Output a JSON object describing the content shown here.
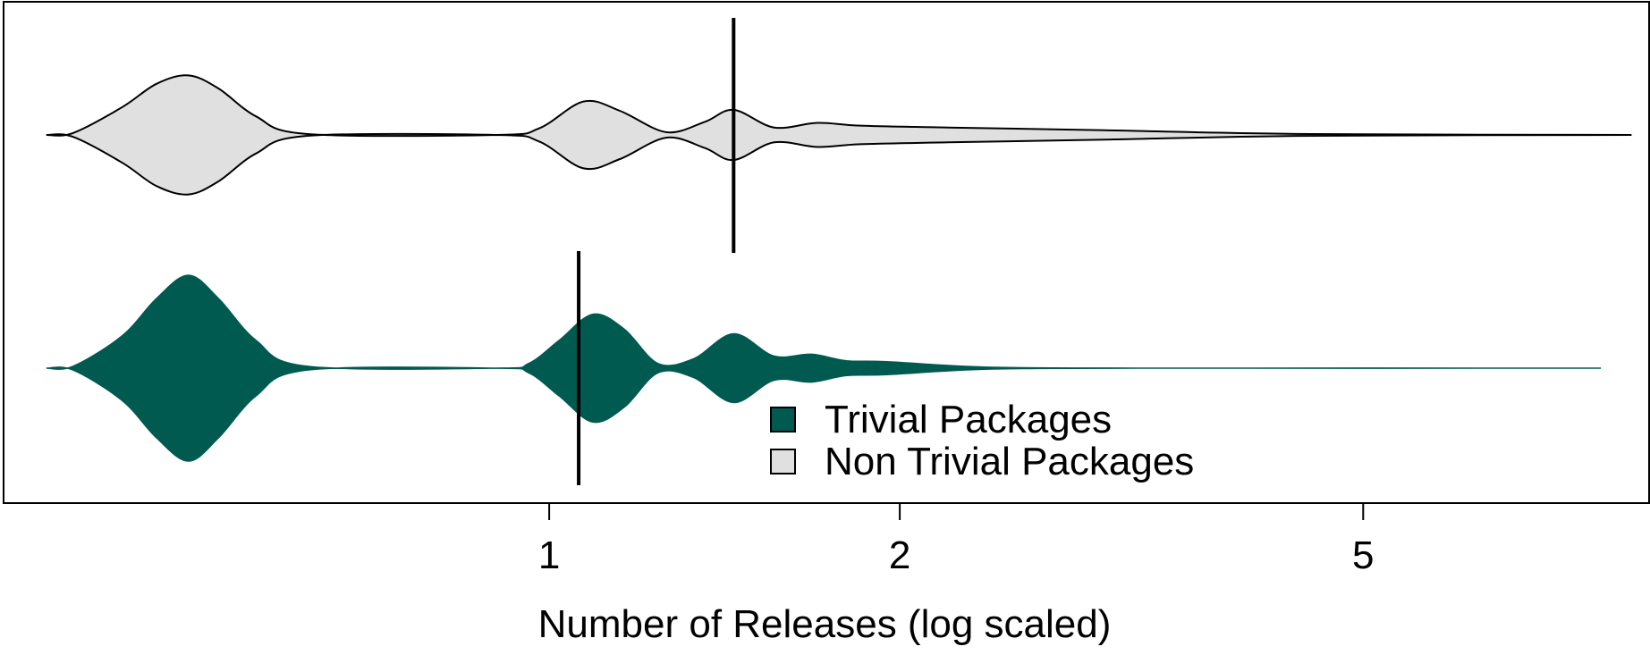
{
  "chart_data": {
    "type": "violin",
    "orientation": "horizontal",
    "xlabel": "Number of Releases (log scaled)",
    "x_scale": "log",
    "xlim": [
      0.34,
      8.8
    ],
    "x_ticks": [
      1,
      2,
      5
    ],
    "x_tick_labels": [
      "1",
      "2",
      "5"
    ],
    "legend_position": "bottom-center",
    "series": [
      {
        "name": "Trivial Packages",
        "color": "#005a50",
        "median": 1.06,
        "max": 8.0,
        "density_profile": [
          {
            "x": 0.37,
            "d": 0.0
          },
          {
            "x": 0.39,
            "d": 0.02
          },
          {
            "x": 0.43,
            "d": 0.35
          },
          {
            "x": 0.46,
            "d": 0.75
          },
          {
            "x": 0.49,
            "d": 1.0
          },
          {
            "x": 0.52,
            "d": 0.75
          },
          {
            "x": 0.56,
            "d": 0.3
          },
          {
            "x": 0.62,
            "d": 0.02
          },
          {
            "x": 0.9,
            "d": 0.0
          },
          {
            "x": 0.96,
            "d": 0.05
          },
          {
            "x": 1.02,
            "d": 0.3
          },
          {
            "x": 1.09,
            "d": 0.58
          },
          {
            "x": 1.16,
            "d": 0.42
          },
          {
            "x": 1.24,
            "d": 0.05
          },
          {
            "x": 1.33,
            "d": 0.1
          },
          {
            "x": 1.44,
            "d": 0.37
          },
          {
            "x": 1.56,
            "d": 0.13
          },
          {
            "x": 1.68,
            "d": 0.15
          },
          {
            "x": 1.8,
            "d": 0.08
          },
          {
            "x": 1.95,
            "d": 0.07
          },
          {
            "x": 2.4,
            "d": 0.01
          },
          {
            "x": 3.5,
            "d": 0.0
          },
          {
            "x": 8.0,
            "d": 0.0
          }
        ]
      },
      {
        "name": "Non Trivial Packages",
        "color": "#e0e0e0",
        "median": 1.44,
        "max": 8.5,
        "density_profile": [
          {
            "x": 0.37,
            "d": 0.0
          },
          {
            "x": 0.39,
            "d": 0.02
          },
          {
            "x": 0.43,
            "d": 0.3
          },
          {
            "x": 0.46,
            "d": 0.55
          },
          {
            "x": 0.49,
            "d": 0.64
          },
          {
            "x": 0.52,
            "d": 0.5
          },
          {
            "x": 0.56,
            "d": 0.2
          },
          {
            "x": 0.62,
            "d": 0.01
          },
          {
            "x": 0.9,
            "d": 0.0
          },
          {
            "x": 0.98,
            "d": 0.07
          },
          {
            "x": 1.07,
            "d": 0.36
          },
          {
            "x": 1.15,
            "d": 0.26
          },
          {
            "x": 1.26,
            "d": 0.03
          },
          {
            "x": 1.36,
            "d": 0.14
          },
          {
            "x": 1.44,
            "d": 0.27
          },
          {
            "x": 1.56,
            "d": 0.08
          },
          {
            "x": 1.7,
            "d": 0.13
          },
          {
            "x": 1.85,
            "d": 0.1
          },
          {
            "x": 2.2,
            "d": 0.08
          },
          {
            "x": 3.0,
            "d": 0.05
          },
          {
            "x": 4.5,
            "d": 0.01
          },
          {
            "x": 8.5,
            "d": 0.0
          }
        ]
      }
    ]
  }
}
